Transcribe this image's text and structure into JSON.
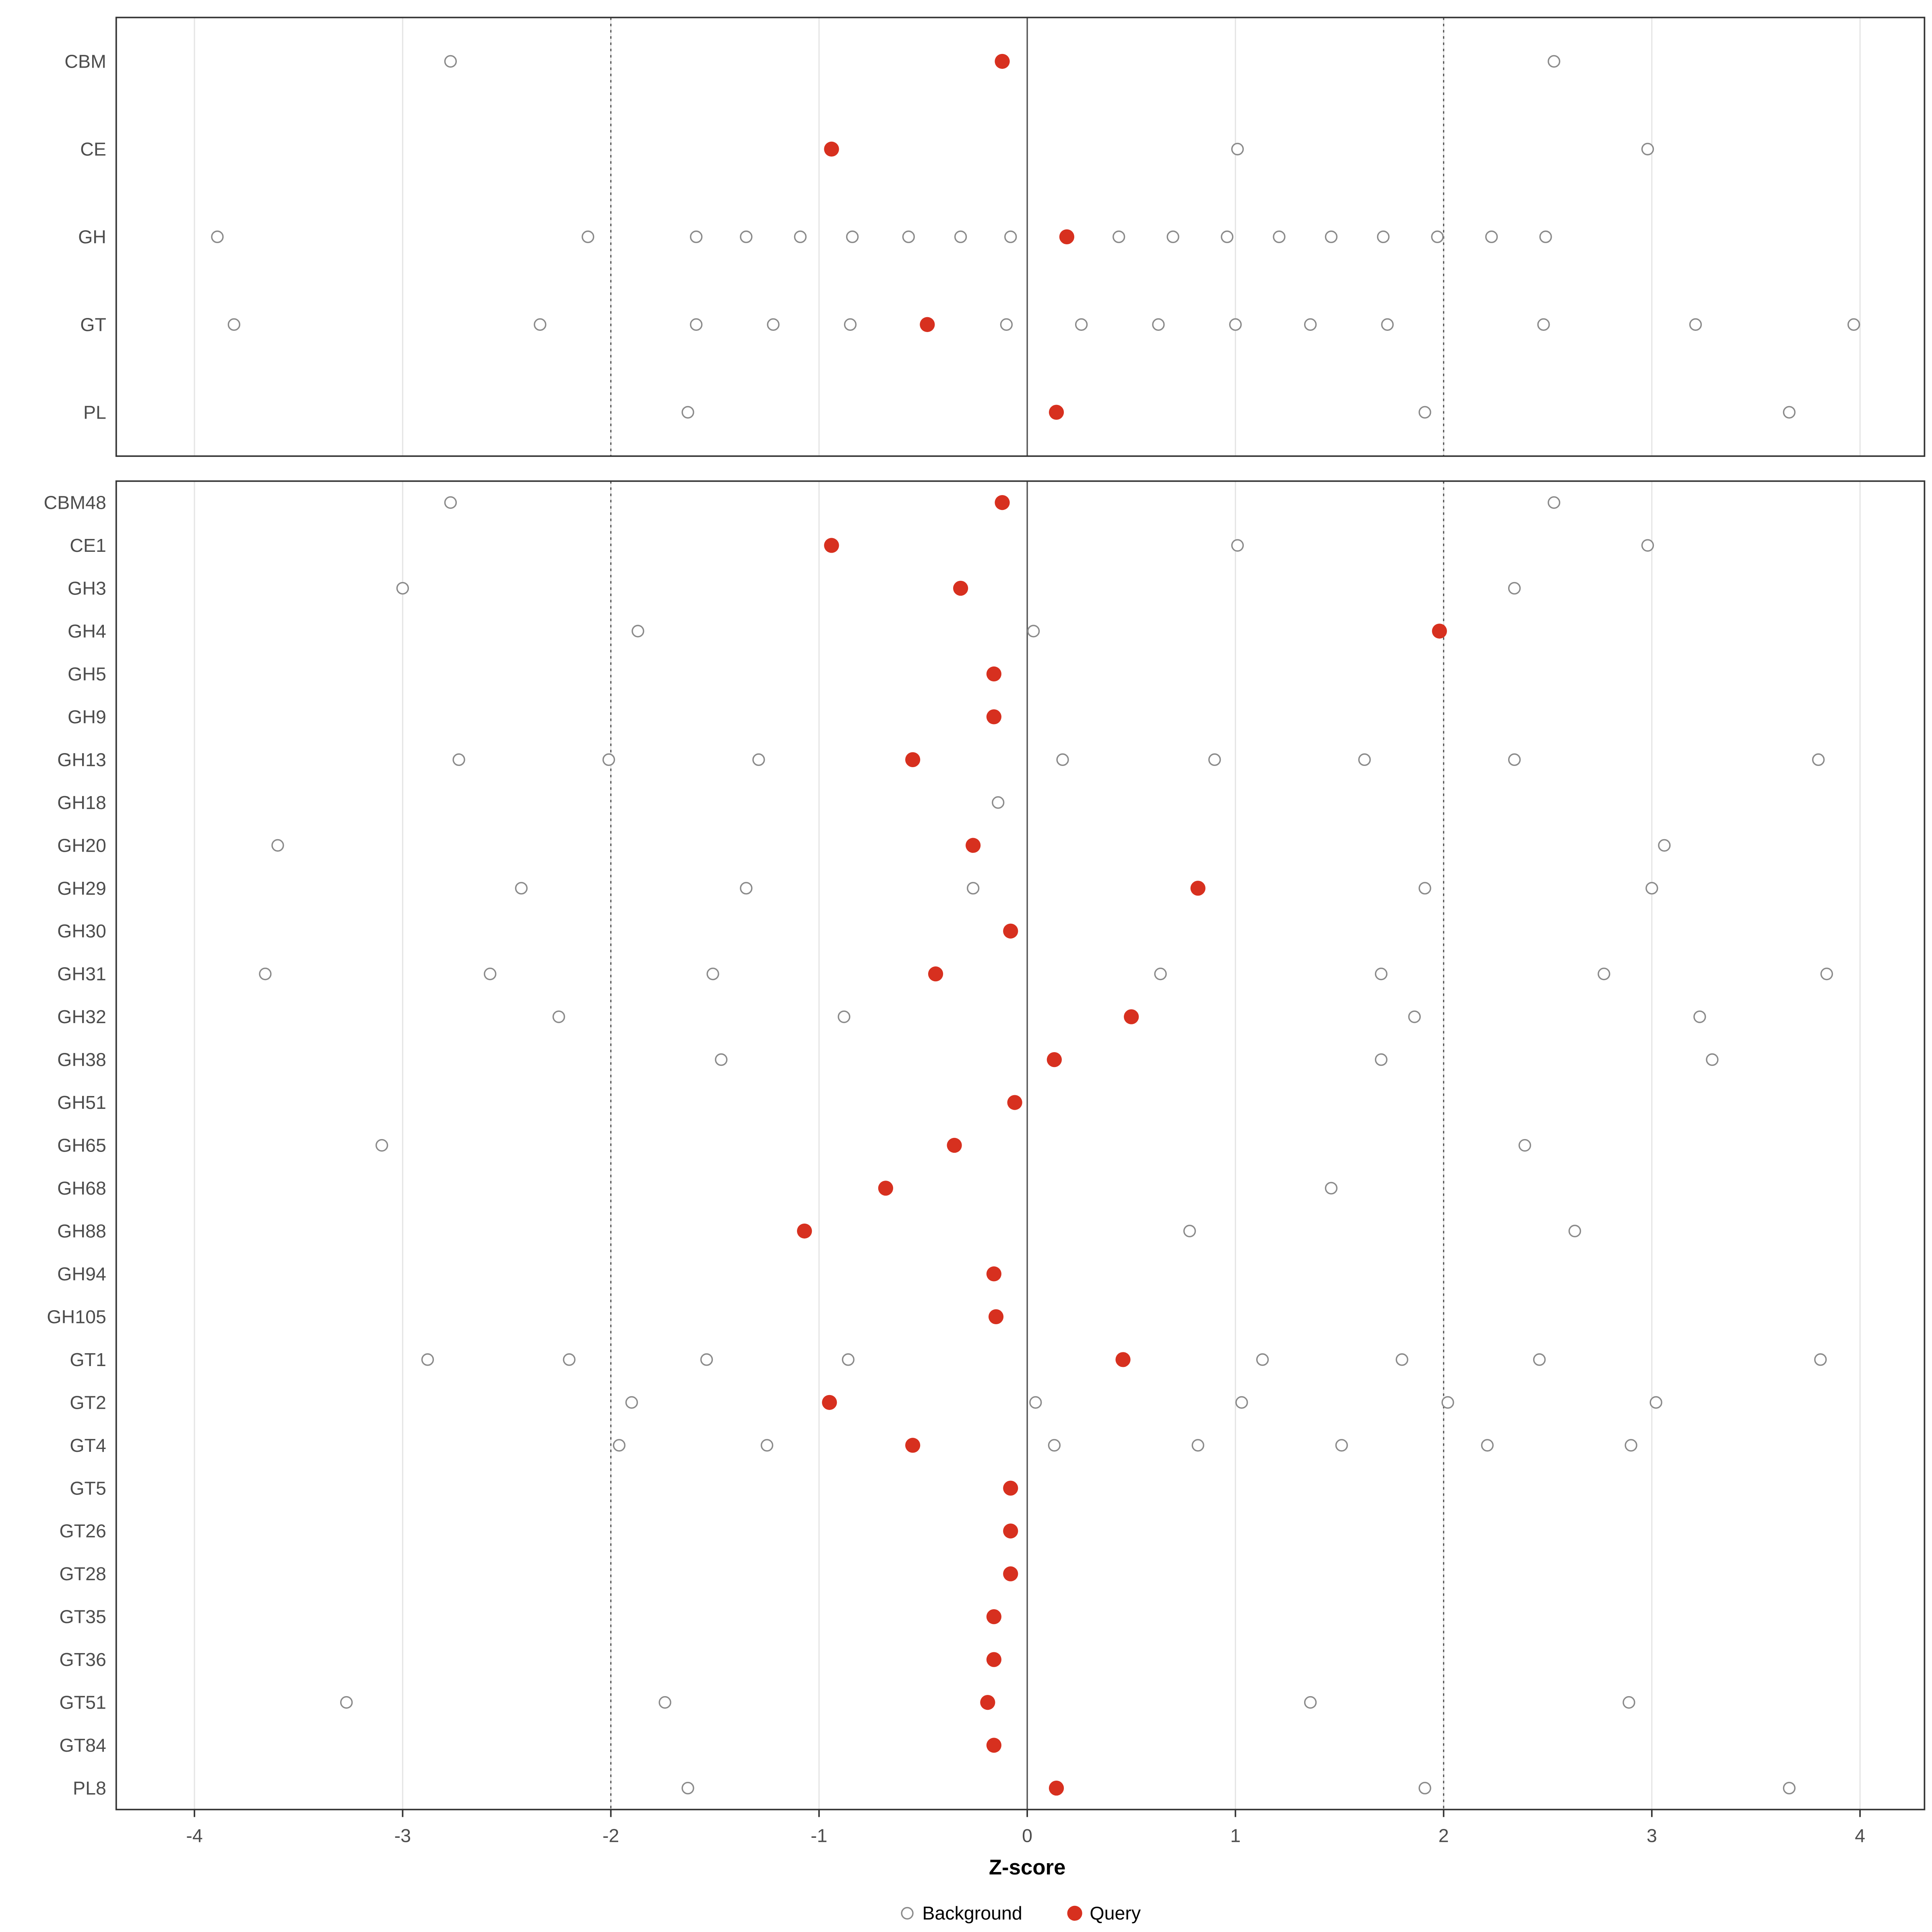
{
  "chart_data": {
    "type": "scatter",
    "title": "",
    "xlabel": "Z-score",
    "axis": {
      "min": -4.38,
      "max": 4.31,
      "ticks": [
        -4,
        -3,
        -2,
        -1,
        0,
        1,
        2,
        3,
        4
      ]
    },
    "grid": "vertical-only",
    "reference_lines": {
      "solid": [
        0
      ],
      "dotted": [
        -2,
        2
      ]
    },
    "legend": [
      {
        "label": "Background",
        "type": "open-circle"
      },
      {
        "label": "Query",
        "type": "filled-circle"
      }
    ],
    "colors": {
      "query": "#d7301f",
      "background_stroke": "#8a8a8a",
      "grid": "#e5e5e5",
      "panel_border": "#333333",
      "text": "#4d4d4d"
    },
    "panels": [
      {
        "name": "class",
        "rows": [
          {
            "label": "CBM",
            "background": [
              -2.77,
              2.53
            ],
            "query": [
              -0.12
            ]
          },
          {
            "label": "CE",
            "background": [
              1.01,
              2.98
            ],
            "query": [
              -0.94
            ]
          },
          {
            "label": "GH",
            "background": [
              -3.89,
              -2.11,
              -1.59,
              -1.35,
              -1.09,
              -0.84,
              -0.57,
              -0.32,
              -0.08,
              0.44,
              0.7,
              0.96,
              1.21,
              1.46,
              1.71,
              1.97,
              2.23,
              2.49
            ],
            "query": [
              0.19
            ]
          },
          {
            "label": "GT",
            "background": [
              -3.81,
              -2.34,
              -1.59,
              -1.22,
              -0.85,
              -0.1,
              0.26,
              0.63,
              1.0,
              1.36,
              1.73,
              2.48,
              3.21,
              3.97
            ],
            "query": [
              -0.48
            ]
          },
          {
            "label": "PL",
            "background": [
              -1.63,
              1.91,
              3.66
            ],
            "query": [
              0.14
            ]
          }
        ]
      },
      {
        "name": "family",
        "rows": [
          {
            "label": "CBM48",
            "background": [
              -2.77,
              2.53
            ],
            "query": [
              -0.12
            ]
          },
          {
            "label": "CE1",
            "background": [
              1.01,
              2.98
            ],
            "query": [
              -0.94
            ]
          },
          {
            "label": "GH3",
            "background": [
              -3.0,
              2.34
            ],
            "query": [
              -0.32
            ]
          },
          {
            "label": "GH4",
            "background": [
              -1.87,
              0.03
            ],
            "query": [
              1.98
            ]
          },
          {
            "label": "GH5",
            "background": [],
            "query": [
              -0.16
            ]
          },
          {
            "label": "GH9",
            "background": [],
            "query": [
              -0.16
            ]
          },
          {
            "label": "GH13",
            "background": [
              -2.73,
              -2.01,
              -1.29,
              0.17,
              0.9,
              1.62,
              2.34,
              3.8
            ],
            "query": [
              -0.55
            ]
          },
          {
            "label": "GH18",
            "background": [
              -0.14
            ],
            "query": []
          },
          {
            "label": "GH20",
            "background": [
              -3.6,
              3.06
            ],
            "query": [
              -0.26
            ]
          },
          {
            "label": "GH29",
            "background": [
              -2.43,
              -1.35,
              -0.26,
              1.91,
              3.0
            ],
            "query": [
              0.82
            ]
          },
          {
            "label": "GH30",
            "background": [],
            "query": [
              -0.08
            ]
          },
          {
            "label": "GH31",
            "background": [
              -3.66,
              -2.58,
              -1.51,
              0.64,
              1.7,
              2.77,
              3.84
            ],
            "query": [
              -0.44
            ]
          },
          {
            "label": "GH32",
            "background": [
              -2.25,
              -0.88,
              1.86,
              3.23
            ],
            "query": [
              0.5
            ]
          },
          {
            "label": "GH38",
            "background": [
              -1.47,
              1.7,
              3.29
            ],
            "query": [
              0.13
            ]
          },
          {
            "label": "GH51",
            "background": [],
            "query": [
              -0.06
            ]
          },
          {
            "label": "GH65",
            "background": [
              -3.1,
              2.39
            ],
            "query": [
              -0.35
            ]
          },
          {
            "label": "GH68",
            "background": [
              1.46
            ],
            "query": [
              -0.68
            ]
          },
          {
            "label": "GH88",
            "background": [
              0.78,
              2.63
            ],
            "query": [
              -1.07
            ]
          },
          {
            "label": "GH94",
            "background": [],
            "query": [
              -0.16
            ]
          },
          {
            "label": "GH105",
            "background": [],
            "query": [
              -0.15
            ]
          },
          {
            "label": "GT1",
            "background": [
              -2.88,
              -2.2,
              -1.54,
              -0.86,
              1.13,
              1.8,
              2.46,
              3.81
            ],
            "query": [
              0.46
            ]
          },
          {
            "label": "GT2",
            "background": [
              -1.9,
              0.04,
              1.03,
              2.02,
              3.02
            ],
            "query": [
              -0.95
            ]
          },
          {
            "label": "GT4",
            "background": [
              -1.96,
              -1.25,
              0.13,
              0.82,
              1.51,
              2.21,
              2.9
            ],
            "query": [
              -0.55
            ]
          },
          {
            "label": "GT5",
            "background": [],
            "query": [
              -0.08
            ]
          },
          {
            "label": "GT26",
            "background": [],
            "query": [
              -0.08
            ]
          },
          {
            "label": "GT28",
            "background": [],
            "query": [
              -0.08
            ]
          },
          {
            "label": "GT35",
            "background": [],
            "query": [
              -0.16
            ]
          },
          {
            "label": "GT36",
            "background": [],
            "query": [
              -0.16
            ]
          },
          {
            "label": "GT51",
            "background": [
              -3.27,
              -1.74,
              1.36,
              2.89
            ],
            "query": [
              -0.19
            ]
          },
          {
            "label": "GT84",
            "background": [],
            "query": [
              -0.16
            ]
          },
          {
            "label": "PL8",
            "background": [
              -1.63,
              1.91,
              3.66
            ],
            "query": [
              0.14
            ]
          }
        ]
      }
    ]
  }
}
